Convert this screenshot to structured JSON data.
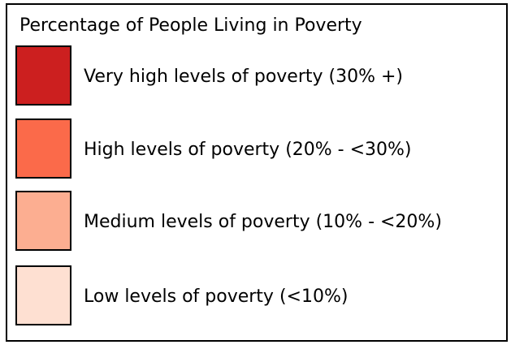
{
  "legend": {
    "title": "Percentage of People Living in Poverty",
    "items": [
      {
        "label": "Very high levels of poverty (30% +)",
        "color": "#cc1f1f"
      },
      {
        "label": "High levels of poverty (20% - <30%)",
        "color": "#fb6a4a"
      },
      {
        "label": "Medium levels of poverty (10% - <20%)",
        "color": "#fcae91"
      },
      {
        "label": "Low levels of poverty (<10%)",
        "color": "#fee0d2"
      }
    ]
  }
}
